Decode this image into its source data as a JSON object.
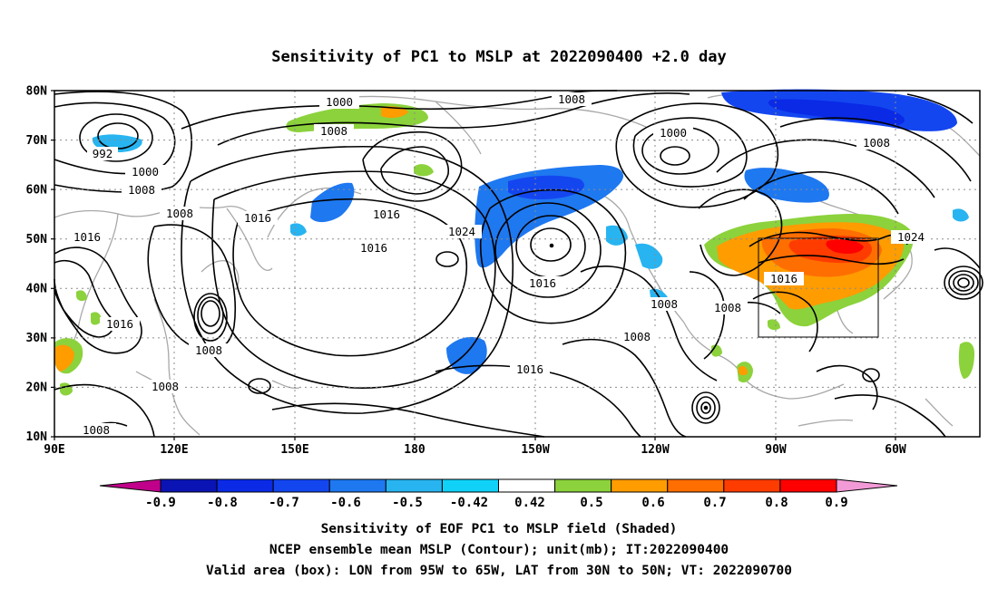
{
  "title": "Sensitivity of PC1 to MSLP at 2022090400 +2.0 day",
  "lat_labels": [
    "80N",
    "70N",
    "60N",
    "50N",
    "40N",
    "30N",
    "20N",
    "10N"
  ],
  "lon_labels": [
    "90E",
    "120E",
    "150E",
    "180",
    "150W",
    "120W",
    "90W",
    "60W"
  ],
  "contour_labels": [
    "1000",
    "1008",
    "992",
    "1000",
    "1008",
    "1016",
    "1008",
    "1016",
    "1016",
    "1024",
    "1016",
    "1016",
    "1008",
    "1000",
    "1008",
    "1024",
    "1016",
    "1008",
    "1008",
    "1016",
    "1008",
    "1008",
    "1008",
    "1008"
  ],
  "valid_box": {
    "lon_from": "95W",
    "lon_to": "65W",
    "lat_from": "30N",
    "lat_to": "50N"
  },
  "colorbar": {
    "labels": [
      "-0.9",
      "-0.8",
      "-0.7",
      "-0.6",
      "-0.5",
      "-0.42",
      "0.42",
      "0.5",
      "0.6",
      "0.7",
      "0.8",
      "0.9"
    ],
    "colors": [
      "#c0008a",
      "#0a14b4",
      "#0a2ae6",
      "#1446f0",
      "#1e78f0",
      "#28b4f0",
      "#10d2f8",
      "#ffffff",
      "#8cd23c",
      "#ff9c00",
      "#ff6e00",
      "#ff3c00",
      "#ff0000",
      "#f29ad6"
    ]
  },
  "captions": [
    "Sensitivity of EOF PC1 to MSLP field (Shaded)",
    "NCEP ensemble mean MSLP (Contour); unit(mb); IT:2022090400",
    "Valid area (box): LON from 95W to 65W, LAT from 30N to 50N; VT: 2022090700"
  ]
}
